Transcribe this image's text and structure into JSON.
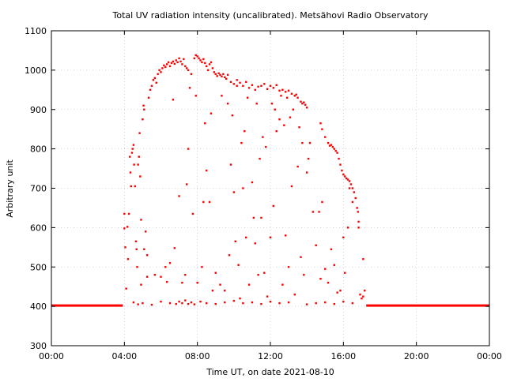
{
  "chart_data": {
    "type": "scatter",
    "title": "Total UV radiation intensity (uncalibrated). Metsähovi Radio Observatory",
    "xlabel": "Time UT, on date 2021-08-10",
    "ylabel": "Arbitrary unit",
    "xlim": [
      "00:00",
      "24:00"
    ],
    "ylim": [
      300,
      1100
    ],
    "x_ticks": [
      "00:00",
      "04:00",
      "08:00",
      "12:00",
      "16:00",
      "20:00",
      "00:00"
    ],
    "y_ticks": [
      300,
      400,
      500,
      600,
      700,
      800,
      900,
      1000,
      1100
    ],
    "grid": true,
    "color": "#ff0000",
    "series": [
      {
        "baseline": [
          {
            "x_start": "00:00",
            "x_end": "03:55",
            "y": 402
          },
          {
            "x_start": "17:15",
            "x_end": "24:00",
            "y": 402
          }
        ],
        "points": [
          [
            "04:00",
            635
          ],
          [
            "04:00",
            598
          ],
          [
            "04:03",
            550
          ],
          [
            "04:06",
            445
          ],
          [
            "04:10",
            602
          ],
          [
            "04:12",
            520
          ],
          [
            "04:15",
            635
          ],
          [
            "04:18",
            780
          ],
          [
            "04:20",
            740
          ],
          [
            "04:22",
            705
          ],
          [
            "04:25",
            790
          ],
          [
            "04:27",
            800
          ],
          [
            "04:30",
            810
          ],
          [
            "04:32",
            760
          ],
          [
            "04:35",
            705
          ],
          [
            "04:38",
            565
          ],
          [
            "04:40",
            545
          ],
          [
            "04:42",
            500
          ],
          [
            "04:45",
            760
          ],
          [
            "04:48",
            780
          ],
          [
            "04:50",
            840
          ],
          [
            "04:52",
            730
          ],
          [
            "04:55",
            620
          ],
          [
            "05:00",
            875
          ],
          [
            "05:03",
            910
          ],
          [
            "05:05",
            900
          ],
          [
            "05:10",
            590
          ],
          [
            "05:15",
            530
          ],
          [
            "05:20",
            930
          ],
          [
            "05:25",
            950
          ],
          [
            "05:30",
            960
          ],
          [
            "05:35",
            975
          ],
          [
            "05:40",
            980
          ],
          [
            "05:45",
            968
          ],
          [
            "05:50",
            990
          ],
          [
            "05:55",
            1000
          ],
          [
            "06:00",
            995
          ],
          [
            "06:05",
            1005
          ],
          [
            "06:10",
            1012
          ],
          [
            "06:15",
            1008
          ],
          [
            "06:20",
            1015
          ],
          [
            "06:25",
            1020
          ],
          [
            "06:30",
            1010
          ],
          [
            "06:35",
            1018
          ],
          [
            "06:40",
            1022
          ],
          [
            "06:45",
            1016
          ],
          [
            "06:50",
            1025
          ],
          [
            "06:55",
            1020
          ],
          [
            "07:00",
            1030
          ],
          [
            "07:05",
            1022
          ],
          [
            "07:10",
            1015
          ],
          [
            "07:15",
            1028
          ],
          [
            "07:20",
            1010
          ],
          [
            "07:25",
            1005
          ],
          [
            "07:30",
            1000
          ],
          [
            "07:40",
            990
          ],
          [
            "07:50",
            1030
          ],
          [
            "07:55",
            1038
          ],
          [
            "08:00",
            1035
          ],
          [
            "08:05",
            1030
          ],
          [
            "08:10",
            1025
          ],
          [
            "08:15",
            1020
          ],
          [
            "08:20",
            1028
          ],
          [
            "08:25",
            1018
          ],
          [
            "08:30",
            1010
          ],
          [
            "08:35",
            1000
          ],
          [
            "08:40",
            1015
          ],
          [
            "08:45",
            1020
          ],
          [
            "08:50",
            1005
          ],
          [
            "08:55",
            995
          ],
          [
            "09:00",
            990
          ],
          [
            "09:05",
            985
          ],
          [
            "09:10",
            992
          ],
          [
            "09:15",
            988
          ],
          [
            "09:20",
            984
          ],
          [
            "09:25",
            990
          ],
          [
            "09:30",
            982
          ],
          [
            "09:35",
            978
          ],
          [
            "09:40",
            988
          ],
          [
            "09:50",
            970
          ],
          [
            "10:00",
            965
          ],
          [
            "10:10",
            975
          ],
          [
            "10:20",
            968
          ],
          [
            "10:30",
            960
          ],
          [
            "10:40",
            970
          ],
          [
            "10:50",
            955
          ],
          [
            "11:00",
            962
          ],
          [
            "11:10",
            950
          ],
          [
            "11:20",
            958
          ],
          [
            "11:30",
            960
          ],
          [
            "11:40",
            965
          ],
          [
            "11:50",
            952
          ],
          [
            "12:00",
            960
          ],
          [
            "12:10",
            955
          ],
          [
            "12:20",
            962
          ],
          [
            "12:30",
            948
          ],
          [
            "12:40",
            950
          ],
          [
            "12:50",
            945
          ],
          [
            "13:00",
            948
          ],
          [
            "13:10",
            940
          ],
          [
            "13:20",
            935
          ],
          [
            "13:25",
            938
          ],
          [
            "13:30",
            930
          ],
          [
            "13:40",
            920
          ],
          [
            "13:45",
            915
          ],
          [
            "13:50",
            918
          ],
          [
            "13:55",
            912
          ],
          [
            "14:00",
            905
          ],
          [
            "14:45",
            865
          ],
          [
            "14:50",
            850
          ],
          [
            "15:00",
            830
          ],
          [
            "15:10",
            815
          ],
          [
            "15:15",
            808
          ],
          [
            "15:20",
            810
          ],
          [
            "15:25",
            805
          ],
          [
            "15:30",
            800
          ],
          [
            "15:35",
            795
          ],
          [
            "15:40",
            790
          ],
          [
            "15:45",
            775
          ],
          [
            "15:50",
            760
          ],
          [
            "15:55",
            745
          ],
          [
            "16:00",
            735
          ],
          [
            "16:05",
            730
          ],
          [
            "16:10",
            725
          ],
          [
            "16:15",
            722
          ],
          [
            "16:20",
            718
          ],
          [
            "16:25",
            710
          ],
          [
            "16:30",
            700
          ],
          [
            "16:35",
            690
          ],
          [
            "16:40",
            675
          ],
          [
            "16:45",
            650
          ],
          [
            "16:48",
            640
          ],
          [
            "16:50",
            615
          ],
          [
            "16:55",
            430
          ],
          [
            "17:00",
            420
          ],
          [
            "17:05",
            425
          ],
          [
            "17:10",
            440
          ],
          [
            "04:30",
            410
          ],
          [
            "04:45",
            405
          ],
          [
            "05:00",
            408
          ],
          [
            "05:30",
            404
          ],
          [
            "06:00",
            412
          ],
          [
            "06:30",
            408
          ],
          [
            "06:50",
            406
          ],
          [
            "07:00",
            412
          ],
          [
            "07:10",
            408
          ],
          [
            "07:20",
            415
          ],
          [
            "07:30",
            406
          ],
          [
            "07:40",
            410
          ],
          [
            "07:50",
            405
          ],
          [
            "08:10",
            412
          ],
          [
            "08:30",
            408
          ],
          [
            "09:00",
            406
          ],
          [
            "09:30",
            410
          ],
          [
            "10:00",
            414
          ],
          [
            "10:30",
            408
          ],
          [
            "11:00",
            410
          ],
          [
            "11:30",
            406
          ],
          [
            "12:00",
            412
          ],
          [
            "12:30",
            408
          ],
          [
            "13:00",
            410
          ],
          [
            "14:00",
            405
          ],
          [
            "14:30",
            408
          ],
          [
            "15:00",
            410
          ],
          [
            "15:30",
            406
          ],
          [
            "16:00",
            412
          ],
          [
            "16:30",
            408
          ],
          [
            "05:15",
            475
          ],
          [
            "06:00",
            475
          ],
          [
            "06:15",
            500
          ],
          [
            "06:30",
            510
          ],
          [
            "06:45",
            548
          ],
          [
            "07:00",
            680
          ],
          [
            "07:10",
            460
          ],
          [
            "07:20",
            480
          ],
          [
            "07:25",
            710
          ],
          [
            "07:30",
            800
          ],
          [
            "07:45",
            635
          ],
          [
            "08:00",
            460
          ],
          [
            "08:15",
            500
          ],
          [
            "08:20",
            665
          ],
          [
            "08:30",
            745
          ],
          [
            "08:40",
            665
          ],
          [
            "08:50",
            440
          ],
          [
            "09:00",
            485
          ],
          [
            "09:15",
            455
          ],
          [
            "09:30",
            440
          ],
          [
            "09:45",
            530
          ],
          [
            "09:50",
            760
          ],
          [
            "10:00",
            690
          ],
          [
            "10:05",
            565
          ],
          [
            "10:15",
            505
          ],
          [
            "10:20",
            420
          ],
          [
            "10:30",
            700
          ],
          [
            "10:40",
            575
          ],
          [
            "10:50",
            455
          ],
          [
            "11:00",
            715
          ],
          [
            "11:05",
            625
          ],
          [
            "11:10",
            560
          ],
          [
            "11:20",
            480
          ],
          [
            "11:30",
            625
          ],
          [
            "11:40",
            485
          ],
          [
            "11:50",
            425
          ],
          [
            "12:00",
            575
          ],
          [
            "12:10",
            655
          ],
          [
            "12:20",
            845
          ],
          [
            "12:30",
            875
          ],
          [
            "12:40",
            455
          ],
          [
            "12:50",
            580
          ],
          [
            "13:00",
            500
          ],
          [
            "13:10",
            705
          ],
          [
            "13:20",
            430
          ],
          [
            "13:30",
            755
          ],
          [
            "13:40",
            525
          ],
          [
            "13:50",
            480
          ],
          [
            "14:00",
            740
          ],
          [
            "14:10",
            815
          ],
          [
            "14:20",
            640
          ],
          [
            "14:30",
            555
          ],
          [
            "14:40",
            640
          ],
          [
            "14:45",
            470
          ],
          [
            "14:50",
            665
          ],
          [
            "15:00",
            495
          ],
          [
            "15:10",
            460
          ],
          [
            "15:20",
            545
          ],
          [
            "15:30",
            505
          ],
          [
            "15:40",
            435
          ],
          [
            "15:50",
            440
          ],
          [
            "16:00",
            575
          ],
          [
            "16:05",
            485
          ],
          [
            "16:15",
            600
          ],
          [
            "16:20",
            700
          ],
          [
            "16:30",
            665
          ],
          [
            "16:50",
            600
          ],
          [
            "17:05",
            520
          ],
          [
            "04:55",
            455
          ],
          [
            "05:05",
            545
          ],
          [
            "05:40",
            480
          ],
          [
            "06:20",
            462
          ],
          [
            "06:40",
            925
          ],
          [
            "07:35",
            955
          ],
          [
            "07:55",
            935
          ],
          [
            "08:25",
            865
          ],
          [
            "08:45",
            890
          ],
          [
            "09:20",
            935
          ],
          [
            "09:40",
            915
          ],
          [
            "09:55",
            885
          ],
          [
            "10:10",
            960
          ],
          [
            "10:25",
            815
          ],
          [
            "10:35",
            845
          ],
          [
            "10:45",
            930
          ],
          [
            "11:15",
            915
          ],
          [
            "11:25",
            775
          ],
          [
            "11:35",
            830
          ],
          [
            "11:45",
            805
          ],
          [
            "12:05",
            915
          ],
          [
            "12:15",
            900
          ],
          [
            "12:35",
            935
          ],
          [
            "12:45",
            860
          ],
          [
            "12:55",
            930
          ],
          [
            "13:05",
            880
          ],
          [
            "13:15",
            900
          ],
          [
            "13:35",
            855
          ],
          [
            "13:45",
            815
          ],
          [
            "14:05",
            775
          ]
        ]
      }
    ]
  }
}
